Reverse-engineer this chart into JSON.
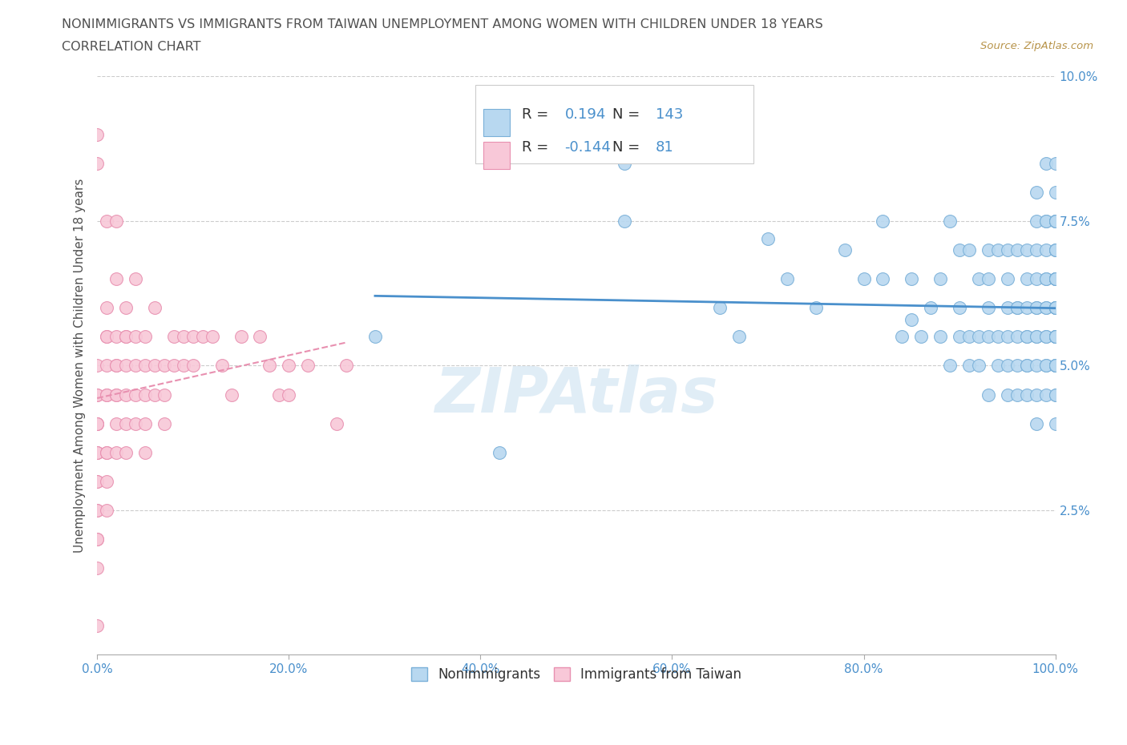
{
  "title_line1": "NONIMMIGRANTS VS IMMIGRANTS FROM TAIWAN UNEMPLOYMENT AMONG WOMEN WITH CHILDREN UNDER 18 YEARS",
  "title_line2": "CORRELATION CHART",
  "source_text": "Source: ZipAtlas.com",
  "ylabel": "Unemployment Among Women with Children Under 18 years",
  "xlim": [
    0,
    100
  ],
  "ylim": [
    0,
    10
  ],
  "xtick_vals": [
    0,
    20,
    40,
    60,
    80,
    100
  ],
  "ytick_vals": [
    0,
    2.5,
    5.0,
    7.5,
    10.0
  ],
  "nonimm_color": "#b8d8f0",
  "nonimm_edge_color": "#7ab0d8",
  "imm_color": "#f8c8d8",
  "imm_edge_color": "#e890b0",
  "nonimm_line_color": "#4a90cc",
  "imm_line_color": "#e890b0",
  "nonimm_R": 0.194,
  "nonimm_N": 143,
  "imm_R": -0.144,
  "imm_N": 81,
  "watermark": "ZIPAtlas",
  "grid_color": "#cccccc",
  "background_color": "#ffffff",
  "title_color": "#505050",
  "axis_label_color": "#505050",
  "tick_label_color": "#4a90cc",
  "legend_text_color_r": "#000000",
  "legend_text_color_n": "#4a90cc",
  "nonimm_scatter_x": [
    29,
    42,
    55,
    55,
    65,
    70,
    67,
    72,
    75,
    78,
    80,
    82,
    82,
    84,
    85,
    85,
    86,
    87,
    88,
    88,
    89,
    89,
    90,
    90,
    90,
    91,
    91,
    91,
    92,
    92,
    92,
    93,
    93,
    93,
    93,
    93,
    94,
    94,
    94,
    95,
    95,
    95,
    95,
    95,
    95,
    96,
    96,
    96,
    96,
    96,
    96,
    97,
    97,
    97,
    97,
    97,
    97,
    97,
    97,
    98,
    98,
    98,
    98,
    98,
    98,
    98,
    98,
    98,
    98,
    98,
    99,
    99,
    99,
    99,
    99,
    99,
    99,
    99,
    99,
    99,
    99,
    99,
    99,
    100,
    100,
    100,
    100,
    100,
    100,
    100,
    100,
    100,
    100,
    100,
    100,
    100,
    100,
    100,
    100,
    100,
    100,
    100,
    100,
    100,
    100,
    100,
    100,
    100,
    100,
    100,
    100,
    100,
    100,
    100,
    100,
    100,
    100,
    100,
    100,
    100,
    100,
    100,
    100,
    100,
    100,
    100,
    100,
    100,
    100,
    100,
    100,
    100,
    100,
    100,
    100,
    100,
    100,
    100,
    100,
    100,
    100,
    100,
    100
  ],
  "nonimm_scatter_y": [
    5.5,
    3.5,
    8.5,
    7.5,
    6.0,
    7.2,
    5.5,
    6.5,
    6.0,
    7.0,
    6.5,
    6.5,
    7.5,
    5.5,
    6.5,
    5.8,
    5.5,
    6.0,
    5.5,
    6.5,
    5.0,
    7.5,
    5.5,
    6.0,
    7.0,
    5.0,
    5.5,
    7.0,
    5.0,
    5.5,
    6.5,
    4.5,
    5.5,
    6.0,
    6.5,
    7.0,
    5.0,
    5.5,
    7.0,
    4.5,
    5.0,
    5.5,
    6.0,
    6.5,
    7.0,
    4.5,
    5.0,
    5.5,
    6.0,
    6.0,
    7.0,
    4.5,
    5.0,
    5.0,
    5.5,
    5.5,
    6.0,
    6.5,
    7.0,
    4.0,
    4.5,
    5.0,
    5.5,
    5.5,
    6.0,
    6.0,
    6.5,
    7.0,
    7.5,
    8.0,
    4.5,
    5.0,
    5.0,
    5.5,
    5.5,
    6.0,
    6.0,
    6.5,
    6.5,
    7.0,
    7.5,
    7.5,
    8.5,
    4.0,
    4.5,
    5.0,
    5.0,
    5.5,
    5.5,
    5.5,
    6.0,
    6.0,
    6.0,
    6.5,
    6.5,
    6.5,
    7.0,
    7.0,
    7.5,
    7.5,
    7.5,
    8.0,
    8.5,
    5.0,
    5.5,
    6.0,
    6.5,
    7.0,
    5.5,
    6.0,
    6.5,
    5.0,
    5.5,
    6.0,
    6.5,
    7.5,
    4.5,
    5.5,
    6.5,
    5.5,
    6.0,
    5.0,
    6.5,
    7.5,
    5.5,
    6.5,
    5.0,
    7.5,
    5.5,
    5.0,
    6.0,
    6.5,
    5.5,
    5.0,
    6.0,
    6.5,
    7.0,
    5.5,
    6.0,
    5.5,
    6.0,
    5.0,
    5.5
  ],
  "imm_scatter_x": [
    0,
    0,
    0,
    0,
    0,
    0,
    0,
    0,
    0,
    0,
    0,
    0,
    0,
    0,
    0,
    0,
    0,
    0,
    0,
    1,
    1,
    1,
    1,
    1,
    1,
    1,
    1,
    1,
    1,
    1,
    2,
    2,
    2,
    2,
    2,
    2,
    2,
    2,
    2,
    3,
    3,
    3,
    3,
    3,
    3,
    3,
    4,
    4,
    4,
    4,
    4,
    5,
    5,
    5,
    5,
    5,
    6,
    6,
    6,
    7,
    7,
    7,
    8,
    8,
    9,
    9,
    10,
    10,
    11,
    12,
    13,
    14,
    15,
    17,
    18,
    19,
    20,
    20,
    22,
    25,
    26
  ],
  "imm_scatter_y": [
    9.0,
    8.5,
    5.0,
    4.5,
    4.5,
    4.0,
    4.0,
    4.0,
    3.5,
    3.5,
    3.5,
    3.0,
    3.0,
    2.5,
    2.5,
    2.0,
    2.0,
    1.5,
    0.5,
    7.5,
    6.0,
    5.5,
    5.5,
    5.0,
    4.5,
    4.5,
    3.5,
    3.5,
    3.0,
    2.5,
    7.5,
    6.5,
    5.5,
    5.0,
    5.0,
    4.5,
    4.5,
    4.0,
    3.5,
    6.0,
    5.5,
    5.5,
    5.0,
    4.5,
    4.0,
    3.5,
    6.5,
    5.5,
    5.0,
    4.5,
    4.0,
    5.5,
    5.0,
    4.5,
    4.0,
    3.5,
    6.0,
    5.0,
    4.5,
    5.0,
    4.5,
    4.0,
    5.5,
    5.0,
    5.5,
    5.0,
    5.5,
    5.0,
    5.5,
    5.5,
    5.0,
    4.5,
    5.5,
    5.5,
    5.0,
    4.5,
    4.5,
    5.0,
    5.0,
    4.0,
    5.0
  ]
}
